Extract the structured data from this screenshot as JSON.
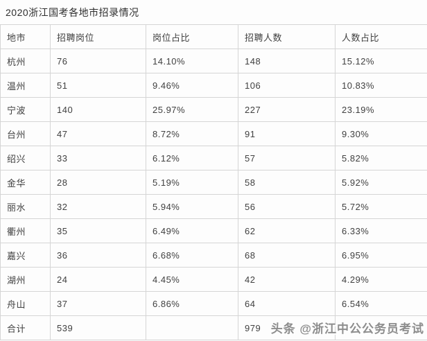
{
  "page": {
    "title": "2020浙江国考各地市招录情况"
  },
  "table": {
    "headers": [
      "地市",
      "招聘岗位",
      "岗位占比",
      "招聘人数",
      "人数占比"
    ],
    "rows": [
      {
        "city": "杭州",
        "positions": "76",
        "position_pct": "14.10%",
        "people": "148",
        "people_pct": "15.12%"
      },
      {
        "city": "温州",
        "positions": "51",
        "position_pct": "9.46%",
        "people": "106",
        "people_pct": "10.83%"
      },
      {
        "city": "宁波",
        "positions": "140",
        "position_pct": "25.97%",
        "people": "227",
        "people_pct": "23.19%"
      },
      {
        "city": "台州",
        "positions": "47",
        "position_pct": "8.72%",
        "people": "91",
        "people_pct": "9.30%"
      },
      {
        "city": "绍兴",
        "positions": "33",
        "position_pct": "6.12%",
        "people": "57",
        "people_pct": "5.82%"
      },
      {
        "city": "金华",
        "positions": "28",
        "position_pct": "5.19%",
        "people": "58",
        "people_pct": "5.92%"
      },
      {
        "city": "丽水",
        "positions": "32",
        "position_pct": "5.94%",
        "people": "56",
        "people_pct": "5.72%"
      },
      {
        "city": "衢州",
        "positions": "35",
        "position_pct": "6.49%",
        "people": "62",
        "people_pct": "6.33%"
      },
      {
        "city": "嘉兴",
        "positions": "36",
        "position_pct": "6.68%",
        "people": "68",
        "people_pct": "6.95%"
      },
      {
        "city": "湖州",
        "positions": "24",
        "position_pct": "4.45%",
        "people": "42",
        "people_pct": "4.29%"
      },
      {
        "city": "舟山",
        "positions": "37",
        "position_pct": "6.86%",
        "people": "64",
        "people_pct": "6.54%"
      },
      {
        "city": "合计",
        "positions": "539",
        "position_pct": "",
        "people": "979",
        "people_pct": ""
      }
    ]
  },
  "watermark": {
    "text": "头条 @浙江中公公务员考试"
  },
  "colors": {
    "background": "#fdfdfd",
    "border": "#d5d5d5",
    "cell_text": "#404040",
    "title_text": "#2e2e2e",
    "watermark_text": "#8d8d8d"
  },
  "chart_data": {
    "type": "table",
    "title": "2020浙江国考各地市招录情况",
    "columns": [
      "地市",
      "招聘岗位",
      "岗位占比",
      "招聘人数",
      "人数占比"
    ],
    "rows": [
      [
        "杭州",
        76,
        "14.10%",
        148,
        "15.12%"
      ],
      [
        "温州",
        51,
        "9.46%",
        106,
        "10.83%"
      ],
      [
        "宁波",
        140,
        "25.97%",
        227,
        "23.19%"
      ],
      [
        "台州",
        47,
        "8.72%",
        91,
        "9.30%"
      ],
      [
        "绍兴",
        33,
        "6.12%",
        57,
        "5.82%"
      ],
      [
        "金华",
        28,
        "5.19%",
        58,
        "5.92%"
      ],
      [
        "丽水",
        32,
        "5.94%",
        56,
        "5.72%"
      ],
      [
        "衢州",
        35,
        "6.49%",
        62,
        "6.33%"
      ],
      [
        "嘉兴",
        36,
        "6.68%",
        68,
        "6.95%"
      ],
      [
        "湖州",
        24,
        "4.45%",
        42,
        "4.29%"
      ],
      [
        "舟山",
        37,
        "6.86%",
        64,
        "6.54%"
      ],
      [
        "合计",
        539,
        "",
        979,
        ""
      ]
    ]
  }
}
